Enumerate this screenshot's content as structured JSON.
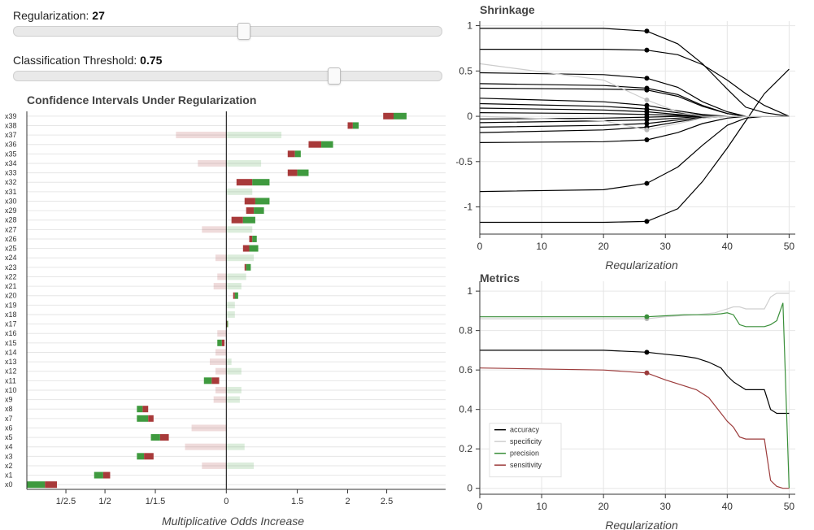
{
  "controls": {
    "regularization": {
      "label": "Regularization:",
      "value": 27,
      "min": 0,
      "max": 50
    },
    "threshold": {
      "label": "Classification Threshold:",
      "value": 0.75,
      "min": 0,
      "max": 1
    }
  },
  "colors": {
    "ci_red": "#a83a3a",
    "ci_green": "#3f9a3f",
    "grid": "#e6e6e6",
    "axis": "#333333"
  },
  "chart_data": [
    {
      "id": "ci",
      "type": "bar",
      "title": "Confidence Intervals Under Regularization",
      "xlabel": "Multiplicative Odds Increase",
      "ylabel": "",
      "x_scale": "log",
      "xlim": [
        0.32,
        3.5
      ],
      "x_ticks": [
        {
          "value": 0.4,
          "label": "1/2.5"
        },
        {
          "value": 0.5,
          "label": "1/2"
        },
        {
          "value": 0.6667,
          "label": "1/1.5"
        },
        {
          "value": 1,
          "label": "0"
        },
        {
          "value": 1.5,
          "label": "1.5"
        },
        {
          "value": 2,
          "label": "2"
        },
        {
          "value": 2.5,
          "label": "2.5"
        }
      ],
      "legend": "none",
      "grid": "horizontal",
      "categories": [
        "x0",
        "x1",
        "x2",
        "x3",
        "x4",
        "x5",
        "x6",
        "x7",
        "x8",
        "x9",
        "x10",
        "x11",
        "x12",
        "x13",
        "x14",
        "x15",
        "x16",
        "x17",
        "x18",
        "x19",
        "x20",
        "x21",
        "x22",
        "x23",
        "x24",
        "x25",
        "x26",
        "x27",
        "x28",
        "x29",
        "x30",
        "x31",
        "x32",
        "x33",
        "x34",
        "x35",
        "x36",
        "x37",
        "x38",
        "x39"
      ],
      "intervals": [
        {
          "low": 0.32,
          "mid": 0.355,
          "high": 0.38,
          "significant": true,
          "reversed": true
        },
        {
          "low": 0.47,
          "mid": 0.495,
          "high": 0.515,
          "significant": true,
          "reversed": true
        },
        {
          "low": 0.87,
          "mid": 1.0,
          "high": 1.17,
          "significant": false
        },
        {
          "low": 0.6,
          "mid": 0.625,
          "high": 0.66,
          "significant": true,
          "reversed": true
        },
        {
          "low": 0.79,
          "mid": 1.0,
          "high": 1.11,
          "significant": false
        },
        {
          "low": 0.65,
          "mid": 0.685,
          "high": 0.72,
          "significant": true,
          "reversed": true
        },
        {
          "low": 0.82,
          "mid": 1.0,
          "high": 1.0,
          "significant": false
        },
        {
          "low": 0.6,
          "mid": 0.64,
          "high": 0.66,
          "significant": true,
          "reversed": true
        },
        {
          "low": 0.6,
          "mid": 0.62,
          "high": 0.64,
          "significant": true,
          "reversed": true
        },
        {
          "low": 0.93,
          "mid": 1.0,
          "high": 1.08,
          "significant": false
        },
        {
          "low": 0.94,
          "mid": 1.0,
          "high": 1.09,
          "significant": false
        },
        {
          "low": 0.88,
          "mid": 0.92,
          "high": 0.96,
          "significant": true,
          "reversed": true
        },
        {
          "low": 0.94,
          "mid": 1.0,
          "high": 1.09,
          "significant": false
        },
        {
          "low": 0.91,
          "mid": 1.0,
          "high": 1.03,
          "significant": false
        },
        {
          "low": 0.94,
          "mid": 1.0,
          "high": 1.0,
          "significant": false
        },
        {
          "low": 0.95,
          "mid": 0.975,
          "high": 0.99,
          "significant": true,
          "reversed": true
        },
        {
          "low": 0.95,
          "mid": 1.0,
          "high": 1.0,
          "significant": false
        },
        {
          "low": 1.0,
          "mid": 1.005,
          "high": 1.01,
          "significant": true
        },
        {
          "low": 1.0,
          "mid": 1.0,
          "high": 1.05,
          "significant": false
        },
        {
          "low": 1.0,
          "mid": 1.0,
          "high": 1.05,
          "significant": false
        },
        {
          "low": 1.04,
          "mid": 1.05,
          "high": 1.07,
          "significant": true
        },
        {
          "low": 0.93,
          "mid": 1.0,
          "high": 1.09,
          "significant": false
        },
        {
          "low": 0.95,
          "mid": 1.0,
          "high": 1.12,
          "significant": false
        },
        {
          "low": 1.11,
          "mid": 1.12,
          "high": 1.15,
          "significant": true
        },
        {
          "low": 0.94,
          "mid": 1.0,
          "high": 1.17,
          "significant": false
        },
        {
          "low": 1.1,
          "mid": 1.14,
          "high": 1.2,
          "significant": true
        },
        {
          "low": 1.14,
          "mid": 1.16,
          "high": 1.19,
          "significant": true
        },
        {
          "low": 0.87,
          "mid": 1.0,
          "high": 1.16,
          "significant": false
        },
        {
          "low": 1.03,
          "mid": 1.1,
          "high": 1.18,
          "significant": true
        },
        {
          "low": 1.12,
          "mid": 1.17,
          "high": 1.24,
          "significant": true
        },
        {
          "low": 1.11,
          "mid": 1.18,
          "high": 1.28,
          "significant": true
        },
        {
          "low": 1.0,
          "mid": 1.0,
          "high": 1.16,
          "significant": false
        },
        {
          "low": 1.06,
          "mid": 1.16,
          "high": 1.28,
          "significant": true
        },
        {
          "low": 1.42,
          "mid": 1.5,
          "high": 1.6,
          "significant": true
        },
        {
          "low": 0.85,
          "mid": 1.0,
          "high": 1.22,
          "significant": false
        },
        {
          "low": 1.42,
          "mid": 1.48,
          "high": 1.53,
          "significant": true
        },
        {
          "low": 1.6,
          "mid": 1.72,
          "high": 1.84,
          "significant": true
        },
        {
          "low": 0.75,
          "mid": 1.0,
          "high": 1.37,
          "significant": false
        },
        {
          "low": 2.0,
          "mid": 2.06,
          "high": 2.13,
          "significant": true
        },
        {
          "low": 2.45,
          "mid": 2.6,
          "high": 2.8,
          "significant": true
        }
      ]
    },
    {
      "id": "shrinkage",
      "type": "line",
      "title": "Shrinkage",
      "xlabel": "Regularization",
      "ylabel": "",
      "xlim": [
        0,
        51
      ],
      "ylim": [
        -1.3,
        1.05
      ],
      "x_ticks": [
        0,
        10,
        20,
        30,
        40,
        50
      ],
      "y_ticks": [
        {
          "value": 1,
          "label": "1"
        },
        {
          "value": 0.5,
          "label": "0.5"
        },
        {
          "value": 0,
          "label": "0"
        },
        {
          "value": -0.5,
          "label": "-0.5"
        },
        {
          "value": -1,
          "label": "-1"
        }
      ],
      "grid": true,
      "legend": "none",
      "marker_x": 27,
      "x": [
        0,
        20,
        27,
        32,
        36,
        40,
        43,
        46,
        50
      ],
      "series": [
        {
          "values": [
            0.97,
            0.97,
            0.94,
            0.8,
            0.58,
            0.3,
            0.1,
            0.04,
            0.0
          ],
          "color": "#000000"
        },
        {
          "values": [
            0.74,
            0.74,
            0.73,
            0.68,
            0.57,
            0.4,
            0.25,
            0.12,
            0.0
          ],
          "color": "#000000"
        },
        {
          "values": [
            0.48,
            0.46,
            0.42,
            0.32,
            0.16,
            0.05,
            0.0,
            0.0,
            0.0
          ],
          "color": "#000000"
        },
        {
          "values": [
            0.36,
            0.34,
            0.31,
            0.24,
            0.12,
            0.03,
            0.0,
            0.0,
            0.0
          ],
          "color": "#000000"
        },
        {
          "values": [
            0.31,
            0.3,
            0.29,
            0.22,
            0.11,
            0.03,
            0.0,
            0.0,
            0.0
          ],
          "color": "#000000"
        },
        {
          "values": [
            0.2,
            0.16,
            0.12,
            0.06,
            0.02,
            0.0,
            0.0,
            0.0,
            0.0
          ],
          "color": "#000000"
        },
        {
          "values": [
            0.14,
            0.11,
            0.08,
            0.04,
            0.01,
            0.0,
            0.0,
            0.0,
            0.0
          ],
          "color": "#000000"
        },
        {
          "values": [
            0.09,
            0.07,
            0.05,
            0.02,
            0.0,
            0.0,
            0.0,
            0.0,
            0.0
          ],
          "color": "#000000"
        },
        {
          "values": [
            0.04,
            0.03,
            0.02,
            0.01,
            0.0,
            0.0,
            0.0,
            0.0,
            0.0
          ],
          "color": "#000000"
        },
        {
          "values": [
            -0.03,
            -0.02,
            -0.01,
            0.0,
            0.0,
            0.0,
            0.0,
            0.0,
            0.0
          ],
          "color": "#000000"
        },
        {
          "values": [
            -0.07,
            -0.05,
            -0.04,
            -0.02,
            0.0,
            0.0,
            0.0,
            0.0,
            0.0
          ],
          "color": "#000000"
        },
        {
          "values": [
            -0.12,
            -0.1,
            -0.08,
            -0.04,
            -0.01,
            0.0,
            0.0,
            0.0,
            0.0
          ],
          "color": "#000000"
        },
        {
          "values": [
            -0.18,
            -0.15,
            -0.12,
            -0.06,
            -0.02,
            0.0,
            0.0,
            0.0,
            0.0
          ],
          "color": "#000000"
        },
        {
          "values": [
            -0.29,
            -0.28,
            -0.26,
            -0.18,
            -0.08,
            -0.02,
            0.0,
            0.0,
            0.0
          ],
          "color": "#000000"
        },
        {
          "values": [
            -0.83,
            -0.81,
            -0.74,
            -0.56,
            -0.32,
            -0.1,
            -0.02,
            0.0,
            0.0
          ],
          "color": "#000000"
        },
        {
          "values": [
            -1.17,
            -1.17,
            -1.16,
            -1.02,
            -0.72,
            -0.35,
            -0.05,
            0.25,
            0.52
          ],
          "color": "#000000"
        },
        {
          "values": [
            0.58,
            0.4,
            0.18,
            0.05,
            0.0,
            0.0,
            0.0,
            0.0,
            0.0
          ],
          "color": "#cccccc"
        },
        {
          "values": [
            0.0,
            -0.05,
            -0.15,
            -0.08,
            -0.02,
            0.0,
            0.0,
            0.0,
            0.0
          ],
          "color": "#cccccc"
        }
      ]
    },
    {
      "id": "metrics",
      "type": "line",
      "title": "Metrics",
      "xlabel": "Regularization",
      "ylabel": "",
      "xlim": [
        0,
        51
      ],
      "ylim": [
        -0.03,
        1.05
      ],
      "x_ticks": [
        0,
        10,
        20,
        30,
        40,
        50
      ],
      "y_ticks": [
        {
          "value": 1,
          "label": "1"
        },
        {
          "value": 0.8,
          "label": "0.8"
        },
        {
          "value": 0.6,
          "label": "0.6"
        },
        {
          "value": 0.4,
          "label": "0.4"
        },
        {
          "value": 0.2,
          "label": "0.2"
        },
        {
          "value": 0,
          "label": "0"
        }
      ],
      "grid": true,
      "legend": "bottom-left",
      "marker_x": 27,
      "series": [
        {
          "name": "accuracy",
          "color": "#000000",
          "x": [
            0,
            20,
            27,
            30,
            33,
            35,
            37,
            39,
            40,
            41,
            42,
            43,
            46,
            47,
            48,
            50
          ],
          "values": [
            0.7,
            0.7,
            0.69,
            0.68,
            0.67,
            0.66,
            0.64,
            0.61,
            0.57,
            0.54,
            0.52,
            0.5,
            0.5,
            0.4,
            0.38,
            0.38
          ]
        },
        {
          "name": "specificity",
          "color": "#cfcfcf",
          "x": [
            0,
            20,
            27,
            30,
            35,
            38,
            40,
            41,
            42,
            43,
            46,
            47,
            48,
            50
          ],
          "values": [
            0.86,
            0.86,
            0.86,
            0.87,
            0.88,
            0.89,
            0.91,
            0.92,
            0.92,
            0.91,
            0.91,
            0.97,
            0.99,
            0.99
          ]
        },
        {
          "name": "precision",
          "color": "#3a8f3a",
          "x": [
            0,
            20,
            27,
            30,
            33,
            35,
            37,
            39,
            40,
            41,
            42,
            43,
            46,
            47,
            48,
            49,
            50
          ],
          "values": [
            0.87,
            0.87,
            0.87,
            0.875,
            0.88,
            0.88,
            0.88,
            0.885,
            0.89,
            0.88,
            0.83,
            0.82,
            0.82,
            0.83,
            0.85,
            0.94,
            0.0
          ]
        },
        {
          "name": "sensitivity",
          "color": "#9c3b3b",
          "x": [
            0,
            20,
            27,
            30,
            33,
            35,
            37,
            38,
            39,
            40,
            41,
            42,
            43,
            46,
            47,
            48,
            49,
            50
          ],
          "values": [
            0.61,
            0.6,
            0.585,
            0.55,
            0.52,
            0.5,
            0.46,
            0.42,
            0.38,
            0.34,
            0.31,
            0.26,
            0.25,
            0.25,
            0.04,
            0.01,
            0.0,
            0.0
          ]
        }
      ]
    }
  ]
}
